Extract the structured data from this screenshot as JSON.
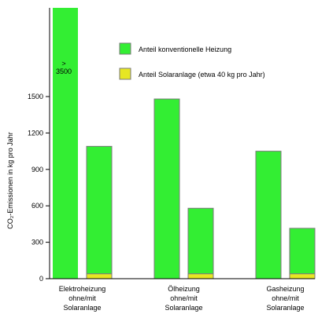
{
  "chart_data": {
    "type": "bar",
    "stacked": true,
    "ylabel": "CO₂-Emissionen in kg pro Jahr",
    "ylim": [
      0,
      1800
    ],
    "yticks": [
      0,
      300,
      600,
      900,
      1200,
      1500
    ],
    "groups": [
      {
        "label_lines": [
          "Elektroheizung",
          "ohne/mit",
          "Solaranlage"
        ]
      },
      {
        "label_lines": [
          "Ölheizung",
          "ohne/mit",
          "Solaranlage"
        ]
      },
      {
        "label_lines": [
          "Gasheizung",
          "ohne/mit",
          "Solaranlage"
        ]
      }
    ],
    "bars": [
      {
        "group": 0,
        "conventional": 3500,
        "solar": 0,
        "annotation": ">3500",
        "clipped": true
      },
      {
        "group": 0,
        "conventional": 1050,
        "solar": 40
      },
      {
        "group": 1,
        "conventional": 1480,
        "solar": 0
      },
      {
        "group": 1,
        "conventional": 540,
        "solar": 40
      },
      {
        "group": 2,
        "conventional": 1050,
        "solar": 0
      },
      {
        "group": 2,
        "conventional": 375,
        "solar": 40
      }
    ],
    "series": [
      {
        "name": "Anteil konventionelle Heizung",
        "color": "#33ee33"
      },
      {
        "name": "Anteil Solaranlage (etwa 40 kg pro Jahr)",
        "color": "#e6e623"
      }
    ],
    "legend_placement": "top-right",
    "grid": false
  }
}
